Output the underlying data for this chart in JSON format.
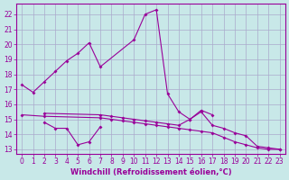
{
  "xlabel": "Windchill (Refroidissement éolien,°C)",
  "background_color": "#c8e8e8",
  "grid_color": "#aaaacc",
  "line_color": "#990099",
  "xlim": [
    -0.5,
    23.5
  ],
  "ylim": [
    12.7,
    22.7
  ],
  "yticks": [
    13,
    14,
    15,
    16,
    17,
    18,
    19,
    20,
    21,
    22
  ],
  "xticks": [
    0,
    1,
    2,
    3,
    4,
    5,
    6,
    7,
    8,
    9,
    10,
    11,
    12,
    13,
    14,
    15,
    16,
    17,
    18,
    19,
    20,
    21,
    22,
    23
  ],
  "series1_x": [
    0,
    1,
    2,
    3,
    4,
    5,
    6,
    7,
    10,
    11,
    12,
    13,
    14,
    15,
    16,
    17
  ],
  "series1_y": [
    17.3,
    16.8,
    17.5,
    18.2,
    18.9,
    19.4,
    20.1,
    18.5,
    20.3,
    22.0,
    22.3,
    16.7,
    15.5,
    15.0,
    15.6,
    15.3
  ],
  "series2_x": [
    2,
    3,
    4,
    5,
    6,
    7
  ],
  "series2_y": [
    14.8,
    14.4,
    14.4,
    13.3,
    13.5,
    14.5
  ],
  "series3_x": [
    2,
    7,
    8,
    9,
    10,
    11,
    12,
    13,
    14,
    15,
    16,
    17,
    18,
    19,
    20,
    21,
    22,
    23
  ],
  "series3_y": [
    15.4,
    15.3,
    15.2,
    15.1,
    15.0,
    14.9,
    14.8,
    14.7,
    14.6,
    15.0,
    15.5,
    14.6,
    14.4,
    14.1,
    13.9,
    13.2,
    13.1,
    13.0
  ],
  "series4_x": [
    0,
    2,
    7,
    8,
    9,
    10,
    11,
    12,
    13,
    14,
    15,
    16,
    17,
    18,
    19,
    20,
    21,
    22,
    23
  ],
  "series4_y": [
    15.3,
    15.2,
    15.1,
    15.0,
    14.9,
    14.8,
    14.7,
    14.6,
    14.5,
    14.4,
    14.3,
    14.2,
    14.1,
    13.8,
    13.5,
    13.3,
    13.1,
    13.0,
    13.0
  ]
}
